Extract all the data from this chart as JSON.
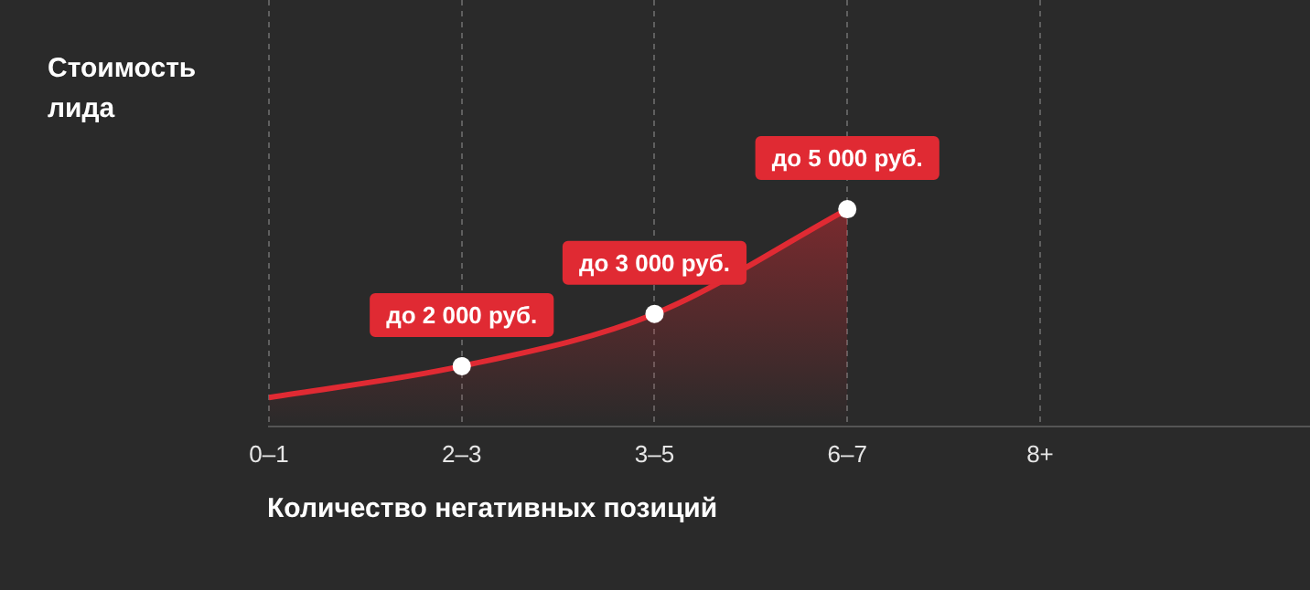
{
  "chart_data": {
    "type": "area",
    "ylabel": "Стоимость лида",
    "xlabel": "Количество негативных позиций",
    "categories": [
      "0–1",
      "2–3",
      "3–5",
      "6–7",
      "8+"
    ],
    "series": [
      {
        "color": "#e02a33",
        "values": [
          1400,
          2000,
          3000,
          5000,
          null
        ],
        "value_labels": [
          null,
          "до 2 000 руб.",
          "до 3 000 руб.",
          "до 5 000 руб.",
          null
        ]
      }
    ],
    "ylim": [
      850,
      9000
    ],
    "tick_labels": "x",
    "grid": "x",
    "legend": false,
    "marker": "circle"
  }
}
